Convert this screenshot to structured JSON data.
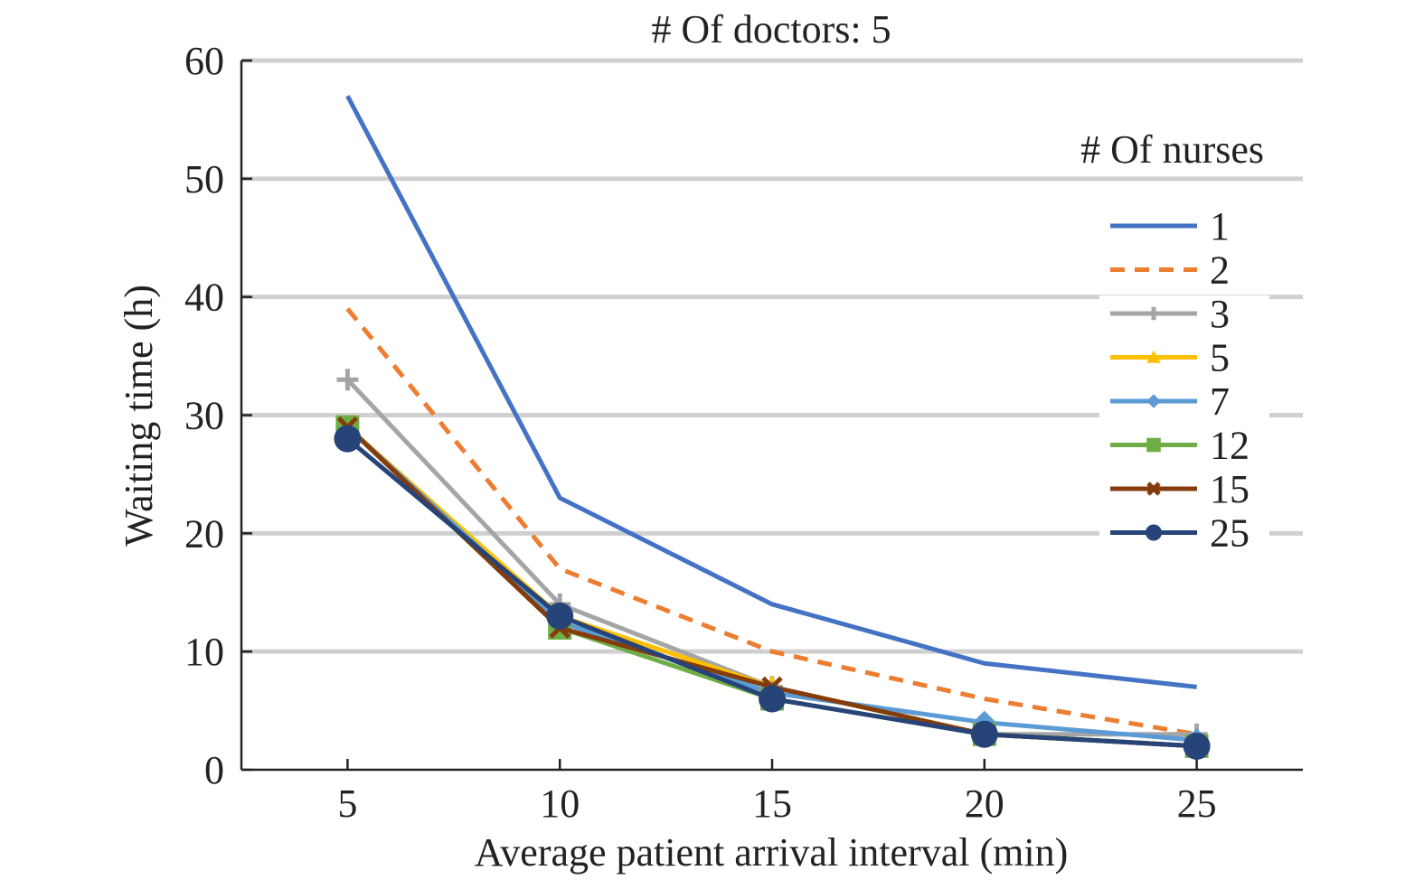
{
  "chart_data": {
    "type": "line",
    "title": "# Of doctors: 5",
    "xlabel": "Average patient arrival interval (min)",
    "ylabel": "Waiting time (h)",
    "x": [
      5,
      10,
      15,
      20,
      25
    ],
    "xlim": [
      2.5,
      27.5
    ],
    "ylim": [
      0,
      60
    ],
    "yticks": [
      0,
      10,
      20,
      30,
      40,
      50,
      60
    ],
    "xticks": [
      5,
      10,
      15,
      20,
      25
    ],
    "grid": "horizontal",
    "legend": {
      "title": "# Of nurses",
      "placement": "right"
    },
    "series": [
      {
        "name": "1",
        "color": "#4472c4",
        "dash": "solid",
        "marker": "none",
        "values": [
          57,
          23,
          14,
          9,
          7
        ]
      },
      {
        "name": "2",
        "color": "#ed7d31",
        "dash": "dashed",
        "marker": "none",
        "values": [
          39,
          17,
          10,
          6,
          3
        ]
      },
      {
        "name": "3",
        "color": "#a5a5a5",
        "dash": "solid",
        "marker": "plus",
        "values": [
          33,
          14,
          7,
          3,
          3
        ]
      },
      {
        "name": "5",
        "color": "#ffc000",
        "dash": "solid",
        "marker": "triangle",
        "values": [
          29,
          13,
          7,
          3,
          2
        ]
      },
      {
        "name": "7",
        "color": "#5b9bd5",
        "dash": "solid",
        "marker": "diamond",
        "values": [
          29,
          12.5,
          6.5,
          4,
          2.5
        ]
      },
      {
        "name": "12",
        "color": "#70ad47",
        "dash": "solid",
        "marker": "square",
        "values": [
          29,
          12,
          6,
          3,
          2
        ]
      },
      {
        "name": "15",
        "color": "#843c0c",
        "dash": "solid",
        "marker": "x",
        "values": [
          29,
          12,
          7,
          3,
          2
        ]
      },
      {
        "name": "25",
        "color": "#264478",
        "dash": "solid",
        "marker": "circle",
        "values": [
          28,
          13,
          6,
          3,
          2
        ]
      }
    ]
  }
}
